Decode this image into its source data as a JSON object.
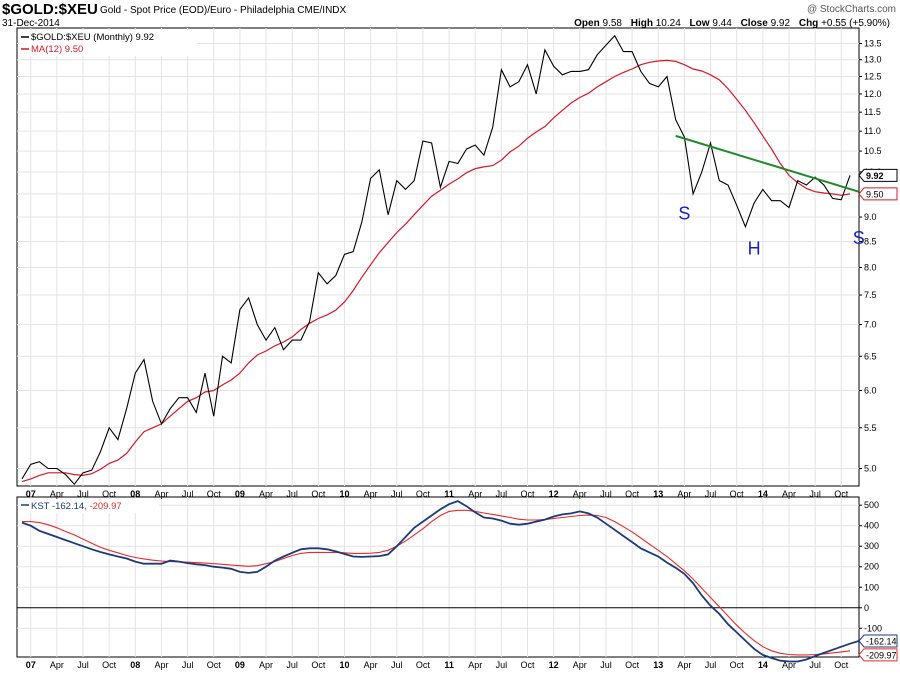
{
  "header": {
    "symbol": "$GOLD:$XEU",
    "subtitle": "Gold - Spot Price (EOD)/Euro - Philadelphia CME/INDX",
    "date": "31-Dec-2014",
    "brand": "@ StockCharts.com",
    "ohlc": [
      {
        "label": "Open",
        "value": "9.58"
      },
      {
        "label": "High",
        "value": "10.24"
      },
      {
        "label": "Low",
        "value": "9.44"
      },
      {
        "label": "Close",
        "value": "9.92"
      },
      {
        "label": "Chg",
        "value": "+0.55 (+5.90%)"
      }
    ]
  },
  "colors": {
    "price": "#000000",
    "ma": "#d6172b",
    "kst": "#1c3a7a",
    "kst_signal": "#e82a2a",
    "trendline": "#1f8a2b",
    "annotation": "#1a1fbf",
    "grid": "#e3e3e3"
  },
  "chart_data": [
    {
      "type": "line",
      "legend": [
        {
          "text": "$GOLD:$XEU (Monthly) 9.92",
          "color": "#000000"
        },
        {
          "text": "MA(12) 9.50",
          "color": "#d6172b"
        }
      ],
      "y_scale": "log",
      "ylim": [
        4.8,
        14.0
      ],
      "y_ticks": [
        "5.0",
        "5.5",
        "6.0",
        "6.5",
        "7.0",
        "7.5",
        "8.0",
        "8.5",
        "9.0",
        "9.5",
        "10.0",
        "10.5",
        "11.0",
        "11.5",
        "12.0",
        "12.5",
        "13.0",
        "13.5"
      ],
      "last_price_label": "9.92",
      "ma_label": "9.50",
      "x_axis_labels": [
        "07",
        "Apr",
        "Jul",
        "Oct",
        "08",
        "Apr",
        "Jul",
        "Oct",
        "09",
        "Apr",
        "Jul",
        "Oct",
        "10",
        "Apr",
        "Jul",
        "Oct",
        "11",
        "Apr",
        "Jul",
        "Oct",
        "12",
        "Apr",
        "Jul",
        "Oct",
        "13",
        "Apr",
        "Jul",
        "Oct",
        "14",
        "Apr",
        "Jul",
        "Oct"
      ],
      "x_start": "2006-12",
      "series": [
        {
          "name": "$GOLD:$XEU (Monthly)",
          "values": [
            4.88,
            5.05,
            5.08,
            5.0,
            5.0,
            4.93,
            4.82,
            4.95,
            4.98,
            5.2,
            5.5,
            5.35,
            5.75,
            6.25,
            6.45,
            5.85,
            5.55,
            5.75,
            5.9,
            5.9,
            5.7,
            6.25,
            5.65,
            6.5,
            6.4,
            7.25,
            7.45,
            7.0,
            6.75,
            6.95,
            6.6,
            6.75,
            6.75,
            7.05,
            7.9,
            7.7,
            7.85,
            8.25,
            8.3,
            8.9,
            9.85,
            10.05,
            9.05,
            9.8,
            9.6,
            9.8,
            10.75,
            10.7,
            9.65,
            10.25,
            10.2,
            10.55,
            10.65,
            10.4,
            11.1,
            12.7,
            12.2,
            12.35,
            12.85,
            12.0,
            13.3,
            12.8,
            12.55,
            12.65,
            12.65,
            12.7,
            13.15,
            13.45,
            13.75,
            13.25,
            13.25,
            12.65,
            12.3,
            12.2,
            12.5,
            11.3,
            10.85,
            9.5,
            10.0,
            10.7,
            9.8,
            9.7,
            9.25,
            8.8,
            9.3,
            9.6,
            9.35,
            9.35,
            9.2,
            9.8,
            9.7,
            9.88,
            9.7,
            9.4,
            9.37,
            9.92
          ]
        },
        {
          "name": "MA(12)",
          "values": [
            4.85,
            4.88,
            4.92,
            4.95,
            4.95,
            4.95,
            4.93,
            4.92,
            4.94,
            4.99,
            5.06,
            5.1,
            5.18,
            5.32,
            5.45,
            5.5,
            5.55,
            5.65,
            5.75,
            5.85,
            5.9,
            5.98,
            6.0,
            6.08,
            6.15,
            6.25,
            6.4,
            6.52,
            6.58,
            6.66,
            6.72,
            6.8,
            6.92,
            7.02,
            7.1,
            7.16,
            7.24,
            7.38,
            7.58,
            7.82,
            8.05,
            8.28,
            8.48,
            8.68,
            8.85,
            9.05,
            9.25,
            9.45,
            9.58,
            9.72,
            9.84,
            9.98,
            10.08,
            10.12,
            10.15,
            10.28,
            10.48,
            10.62,
            10.82,
            10.98,
            11.12,
            11.35,
            11.55,
            11.75,
            11.9,
            12.02,
            12.2,
            12.35,
            12.5,
            12.62,
            12.72,
            12.85,
            12.92,
            12.96,
            12.98,
            12.95,
            12.85,
            12.72,
            12.66,
            12.55,
            12.4,
            12.15,
            11.85,
            11.55,
            11.22,
            10.88,
            10.55,
            10.2,
            9.92,
            9.75,
            9.62,
            9.55,
            9.52,
            9.5,
            9.47,
            9.5
          ]
        }
      ],
      "trendline": {
        "x_from": "2013-03",
        "y_from": 10.88,
        "x_to": "2014-12",
        "y_to": 9.55
      },
      "annotations": [
        {
          "text": "S",
          "x": "2013-04",
          "y": 8.95
        },
        {
          "text": "H",
          "x": "2013-12",
          "y": 8.25
        },
        {
          "text": "S",
          "x": "2014-12",
          "y": 8.45
        }
      ]
    },
    {
      "type": "line",
      "legend": [
        {
          "text": "KST -162.14",
          "color": "#1c3a7a"
        },
        {
          "text": ", -209.97",
          "color": "#e82a2a"
        }
      ],
      "ylim": [
        -240,
        540
      ],
      "y_ticks": [
        "500",
        "400",
        "300",
        "200",
        "100",
        "0",
        "-100"
      ],
      "last_labels": [
        "-162.14",
        "-209.97"
      ],
      "x_axis_labels": [
        "07",
        "Apr",
        "Jul",
        "Oct",
        "08",
        "Apr",
        "Jul",
        "Oct",
        "09",
        "Apr",
        "Jul",
        "Oct",
        "10",
        "Apr",
        "Jul",
        "Oct",
        "11",
        "Apr",
        "Jul",
        "Oct",
        "12",
        "Apr",
        "Jul",
        "Oct",
        "13",
        "Apr",
        "Jul",
        "Oct",
        "14",
        "Apr",
        "Jul",
        "Oct"
      ],
      "x_start": "2006-12",
      "series": [
        {
          "name": "KST",
          "values": [
            415,
            400,
            375,
            360,
            345,
            330,
            315,
            300,
            285,
            272,
            260,
            250,
            240,
            225,
            215,
            215,
            215,
            230,
            225,
            218,
            212,
            208,
            200,
            196,
            190,
            175,
            170,
            175,
            200,
            230,
            250,
            268,
            285,
            290,
            290,
            285,
            275,
            262,
            250,
            248,
            250,
            252,
            260,
            300,
            345,
            390,
            420,
            450,
            480,
            505,
            520,
            495,
            465,
            440,
            435,
            425,
            410,
            405,
            410,
            420,
            430,
            445,
            455,
            460,
            470,
            460,
            440,
            410,
            380,
            350,
            320,
            290,
            270,
            250,
            220,
            195,
            165,
            120,
            60,
            10,
            -30,
            -80,
            -120,
            -160,
            -200,
            -230,
            -245,
            -258,
            -262,
            -262,
            -252,
            -235,
            -220,
            -205,
            -190,
            -175,
            -162
          ]
        },
        {
          "name": "Signal",
          "values": [
            420,
            420,
            415,
            405,
            390,
            372,
            355,
            335,
            315,
            295,
            280,
            268,
            255,
            245,
            238,
            232,
            228,
            225,
            224,
            222,
            220,
            218,
            215,
            212,
            208,
            205,
            202,
            205,
            215,
            225,
            240,
            255,
            265,
            270,
            270,
            270,
            270,
            268,
            265,
            265,
            266,
            270,
            280,
            300,
            325,
            355,
            385,
            420,
            450,
            470,
            475,
            475,
            470,
            462,
            455,
            448,
            440,
            432,
            428,
            428,
            430,
            435,
            440,
            445,
            450,
            452,
            450,
            440,
            420,
            395,
            370,
            340,
            310,
            280,
            250,
            215,
            180,
            140,
            95,
            50,
            5,
            -40,
            -85,
            -125,
            -160,
            -190,
            -210,
            -222,
            -228,
            -230,
            -230,
            -228,
            -225,
            -220,
            -215,
            -210
          ]
        }
      ]
    }
  ]
}
